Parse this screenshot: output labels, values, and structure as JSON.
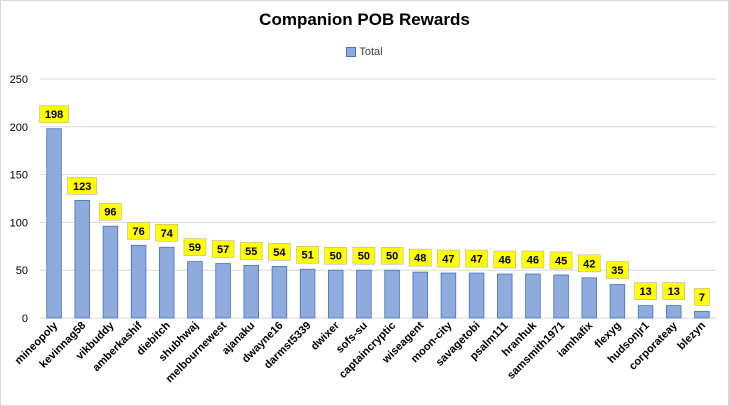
{
  "chart_data": {
    "type": "bar",
    "title": "Companion POB Rewards",
    "xlabel": "",
    "ylabel": "",
    "ylim": [
      0,
      250
    ],
    "yticks": [
      0,
      50,
      100,
      150,
      200,
      250
    ],
    "grid": true,
    "legend_position": "top",
    "categories": [
      "mineopoly",
      "kevinnag58",
      "vikbuddy",
      "amberkashif",
      "diebitch",
      "shubhwaj",
      "melbournewest",
      "ajanaku",
      "dwayne16",
      "darmst5339",
      "dwixer",
      "sofs-su",
      "captaincryptic",
      "wiseagent",
      "moon-city",
      "savagetobi",
      "psalm111",
      "hranhuk",
      "samsmith1971",
      "iamhafix",
      "flexyg",
      "hudsonjr1",
      "corporateay",
      "blezyn"
    ],
    "series": [
      {
        "name": "Total",
        "values": [
          198,
          123,
          96,
          76,
          74,
          59,
          57,
          55,
          54,
          51,
          50,
          50,
          50,
          48,
          47,
          47,
          46,
          46,
          45,
          42,
          35,
          13,
          13,
          7
        ]
      }
    ],
    "colors": {
      "bar_fill": "#8faadc",
      "bar_stroke": "#4472c4",
      "label_fill": "#ffff00",
      "grid": "#d9d9d9"
    }
  }
}
